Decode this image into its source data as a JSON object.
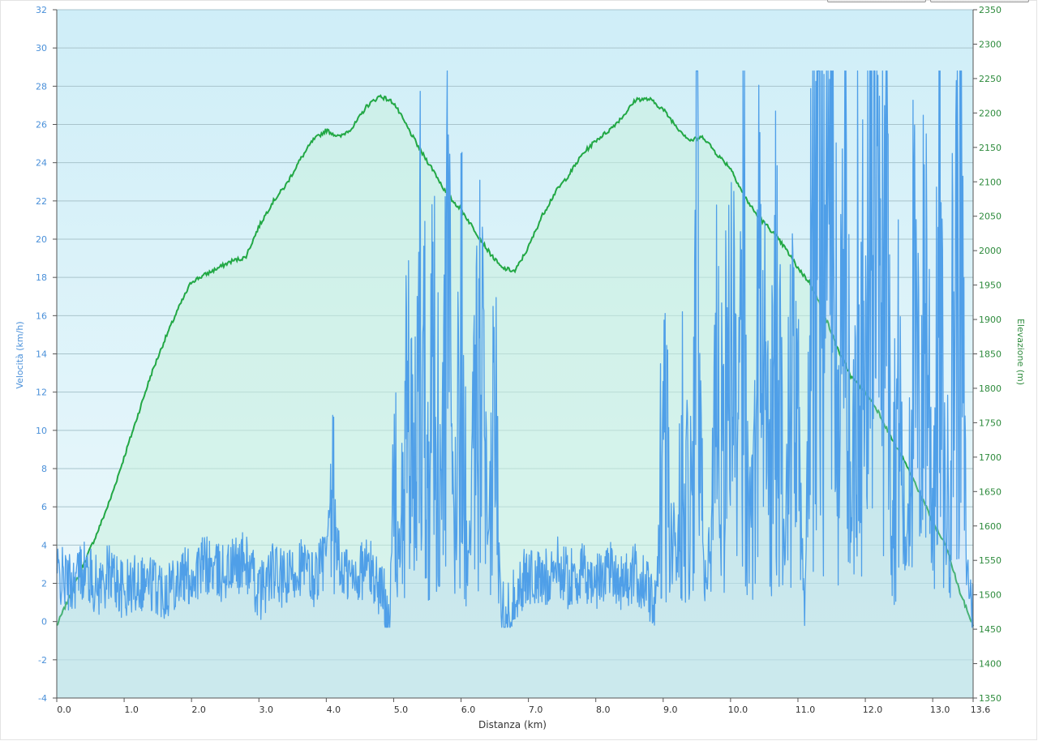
{
  "chart_data": {
    "type": "line",
    "xlabel": "Distanza  (km)",
    "ylabel_left": "Velocità (km/h)",
    "ylabel_right": "Elevazione (m)",
    "x_ticks": [
      "0.0",
      "1.0",
      "2.0",
      "3.0",
      "4.0",
      "5.0",
      "6.0",
      "7.0",
      "8.0",
      "9.0",
      "10.0",
      "11.0",
      "12.0",
      "13.0",
      "13.6"
    ],
    "x_tick_values": [
      0,
      1,
      2,
      3,
      4,
      5,
      6,
      7,
      8,
      9,
      10,
      11,
      12,
      13,
      13.6
    ],
    "xlim": [
      0,
      13.6
    ],
    "y_left_ticks": [
      "-4",
      "-2",
      "0",
      "2",
      "4",
      "6",
      "8",
      "10",
      "12",
      "14",
      "16",
      "18",
      "20",
      "22",
      "24",
      "26",
      "28",
      "30",
      "32"
    ],
    "ylim_left": [
      -4,
      32
    ],
    "y_right_ticks": [
      "1350",
      "1400",
      "1450",
      "1500",
      "1550",
      "1600",
      "1650",
      "1700",
      "1750",
      "1800",
      "1850",
      "1900",
      "1950",
      "2000",
      "2050",
      "2100",
      "2150",
      "2200",
      "2250",
      "2300",
      "2350"
    ],
    "ylim_right": [
      1350,
      2350
    ],
    "grid": true,
    "colors": {
      "speed": "#4f9fe8",
      "elevation": "#22a845",
      "bg_top": "#cfeef8",
      "bg_bottom": "#eef9fb"
    },
    "series": [
      {
        "axis": "right",
        "color": "#22a845",
        "x": [
          0,
          0.2,
          0.4,
          0.6,
          0.8,
          1.0,
          1.2,
          1.4,
          1.6,
          1.8,
          2.0,
          2.2,
          2.4,
          2.6,
          2.8,
          3.0,
          3.2,
          3.4,
          3.6,
          3.8,
          4.0,
          4.2,
          4.4,
          4.6,
          4.8,
          5.0,
          5.2,
          5.4,
          5.6,
          5.8,
          6.0,
          6.2,
          6.4,
          6.6,
          6.8,
          7.0,
          7.2,
          7.4,
          7.6,
          7.8,
          8.0,
          8.2,
          8.4,
          8.6,
          8.8,
          9.0,
          9.2,
          9.4,
          9.6,
          9.8,
          10.0,
          10.2,
          10.4,
          10.6,
          10.8,
          11.0,
          11.2,
          11.4,
          11.6,
          11.8,
          12.0,
          12.2,
          12.4,
          12.6,
          12.8,
          13.0,
          13.2,
          13.4,
          13.6
        ],
        "values": [
          1455,
          1500,
          1545,
          1590,
          1640,
          1700,
          1760,
          1820,
          1870,
          1915,
          1955,
          1965,
          1975,
          1985,
          1990,
          2035,
          2070,
          2095,
          2130,
          2160,
          2175,
          2165,
          2180,
          2210,
          2225,
          2215,
          2180,
          2145,
          2115,
          2080,
          2060,
          2030,
          2000,
          1975,
          1970,
          2005,
          2050,
          2085,
          2110,
          2140,
          2160,
          2175,
          2195,
          2220,
          2220,
          2205,
          2180,
          2160,
          2165,
          2140,
          2120,
          2080,
          2050,
          2030,
          2005,
          1975,
          1950,
          1905,
          1855,
          1815,
          1795,
          1765,
          1725,
          1690,
          1650,
          1605,
          1570,
          1505,
          1455
        ]
      },
      {
        "axis": "left",
        "color": "#4f9fe8",
        "x": [
          0,
          0.2,
          0.4,
          0.6,
          0.8,
          1.0,
          1.2,
          1.4,
          1.6,
          1.8,
          2.0,
          2.2,
          2.4,
          2.6,
          2.8,
          3.0,
          3.2,
          3.4,
          3.6,
          3.8,
          4.0,
          4.1,
          4.2,
          4.4,
          4.6,
          4.8,
          4.95,
          5.0,
          5.1,
          5.2,
          5.3,
          5.4,
          5.5,
          5.6,
          5.7,
          5.8,
          5.9,
          6.0,
          6.1,
          6.2,
          6.3,
          6.4,
          6.5,
          6.6,
          6.7,
          6.8,
          7.0,
          7.2,
          7.4,
          7.6,
          7.8,
          8.0,
          8.2,
          8.4,
          8.6,
          8.8,
          8.9,
          9.0,
          9.1,
          9.2,
          9.3,
          9.4,
          9.5,
          9.6,
          9.7,
          9.8,
          9.9,
          10.0,
          10.1,
          10.2,
          10.3,
          10.4,
          10.5,
          10.6,
          10.7,
          10.8,
          10.9,
          11.0,
          11.1,
          11.2,
          11.3,
          11.4,
          11.5,
          11.6,
          11.7,
          11.8,
          11.9,
          12.0,
          12.1,
          12.2,
          12.3,
          12.4,
          12.5,
          12.6,
          12.7,
          12.8,
          12.9,
          13.0,
          13.1,
          13.2,
          13.3,
          13.4,
          13.5,
          13.6
        ],
        "values": [
          2.5,
          2.0,
          2.8,
          1.8,
          2.6,
          1.5,
          2.2,
          2.0,
          1.7,
          2.4,
          2.3,
          3.0,
          2.5,
          2.8,
          3.2,
          1.5,
          2.6,
          2.0,
          3.0,
          2.2,
          3.5,
          6.0,
          2.8,
          2.2,
          3.0,
          1.8,
          0.5,
          8.0,
          3.0,
          12.0,
          6.0,
          17.0,
          9.0,
          15.0,
          5.0,
          18.0,
          4.0,
          16.0,
          2.0,
          9.0,
          14.0,
          3.0,
          12.0,
          1.0,
          0.5,
          1.5,
          2.5,
          2.0,
          3.0,
          2.2,
          2.5,
          2.0,
          3.0,
          2.0,
          2.5,
          1.5,
          0.5,
          12.0,
          7.0,
          3.0,
          10.0,
          5.0,
          21.0,
          2.0,
          4.0,
          16.0,
          8.0,
          19.0,
          6.0,
          20.0,
          4.0,
          18.0,
          12.0,
          8.0,
          17.0,
          3.0,
          13.0,
          9.0,
          1.0,
          17.0,
          28.5,
          20.0,
          25.0,
          8.0,
          21.0,
          4.0,
          22.0,
          10.0,
          28.5,
          15.0,
          23.0,
          7.0,
          12.0,
          2.5,
          16.0,
          10.0,
          18.0,
          6.0,
          17.0,
          4.0,
          15.0,
          23.0,
          3.0,
          0.5
        ]
      }
    ]
  }
}
